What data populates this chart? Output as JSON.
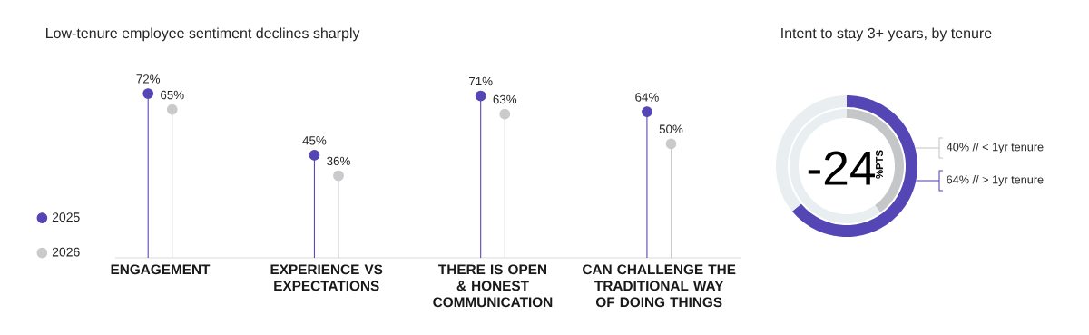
{
  "chart_data": [
    {
      "type": "lollipop",
      "title": "Low-tenure employee sentiment declines sharply",
      "categories": [
        "ENGAGEMENT",
        "EXPERIENCE VS EXPECTATIONS",
        "THERE IS OPEN & HONEST COMMUNICATION",
        "CAN CHALLENGE THE TRADITIONAL WAY OF DOING THINGS"
      ],
      "series": [
        {
          "name": "2025",
          "color": "#5446b4",
          "values": [
            72,
            45,
            71,
            64
          ],
          "value_labels": [
            "72%",
            "45%",
            "71%",
            "64%"
          ]
        },
        {
          "name": "2026",
          "color": "#c9cacc",
          "values": [
            65,
            36,
            63,
            50
          ],
          "value_labels": [
            "65%",
            "36%",
            "63%",
            "50%"
          ]
        }
      ],
      "legend": "left",
      "marker": "circle"
    },
    {
      "type": "donut",
      "title": "Intent to stay 3+ years, by tenure",
      "categories": [
        "< 1yr tenure",
        null
      ],
      "values": [
        40,
        60
      ],
      "colors": [
        "#c4c6c8",
        "#e9eef1"
      ],
      "value_labels": [
        "40% //",
        null
      ],
      "annotations": [
        "-24",
        "%PTS"
      ]
    },
    {
      "type": "donut",
      "categories": [
        "> 1yr tenure",
        null
      ],
      "values": [
        64,
        36
      ],
      "colors": [
        "#5446b4",
        "#e9eef1"
      ],
      "value_labels": [
        "64% //",
        null
      ]
    }
  ]
}
